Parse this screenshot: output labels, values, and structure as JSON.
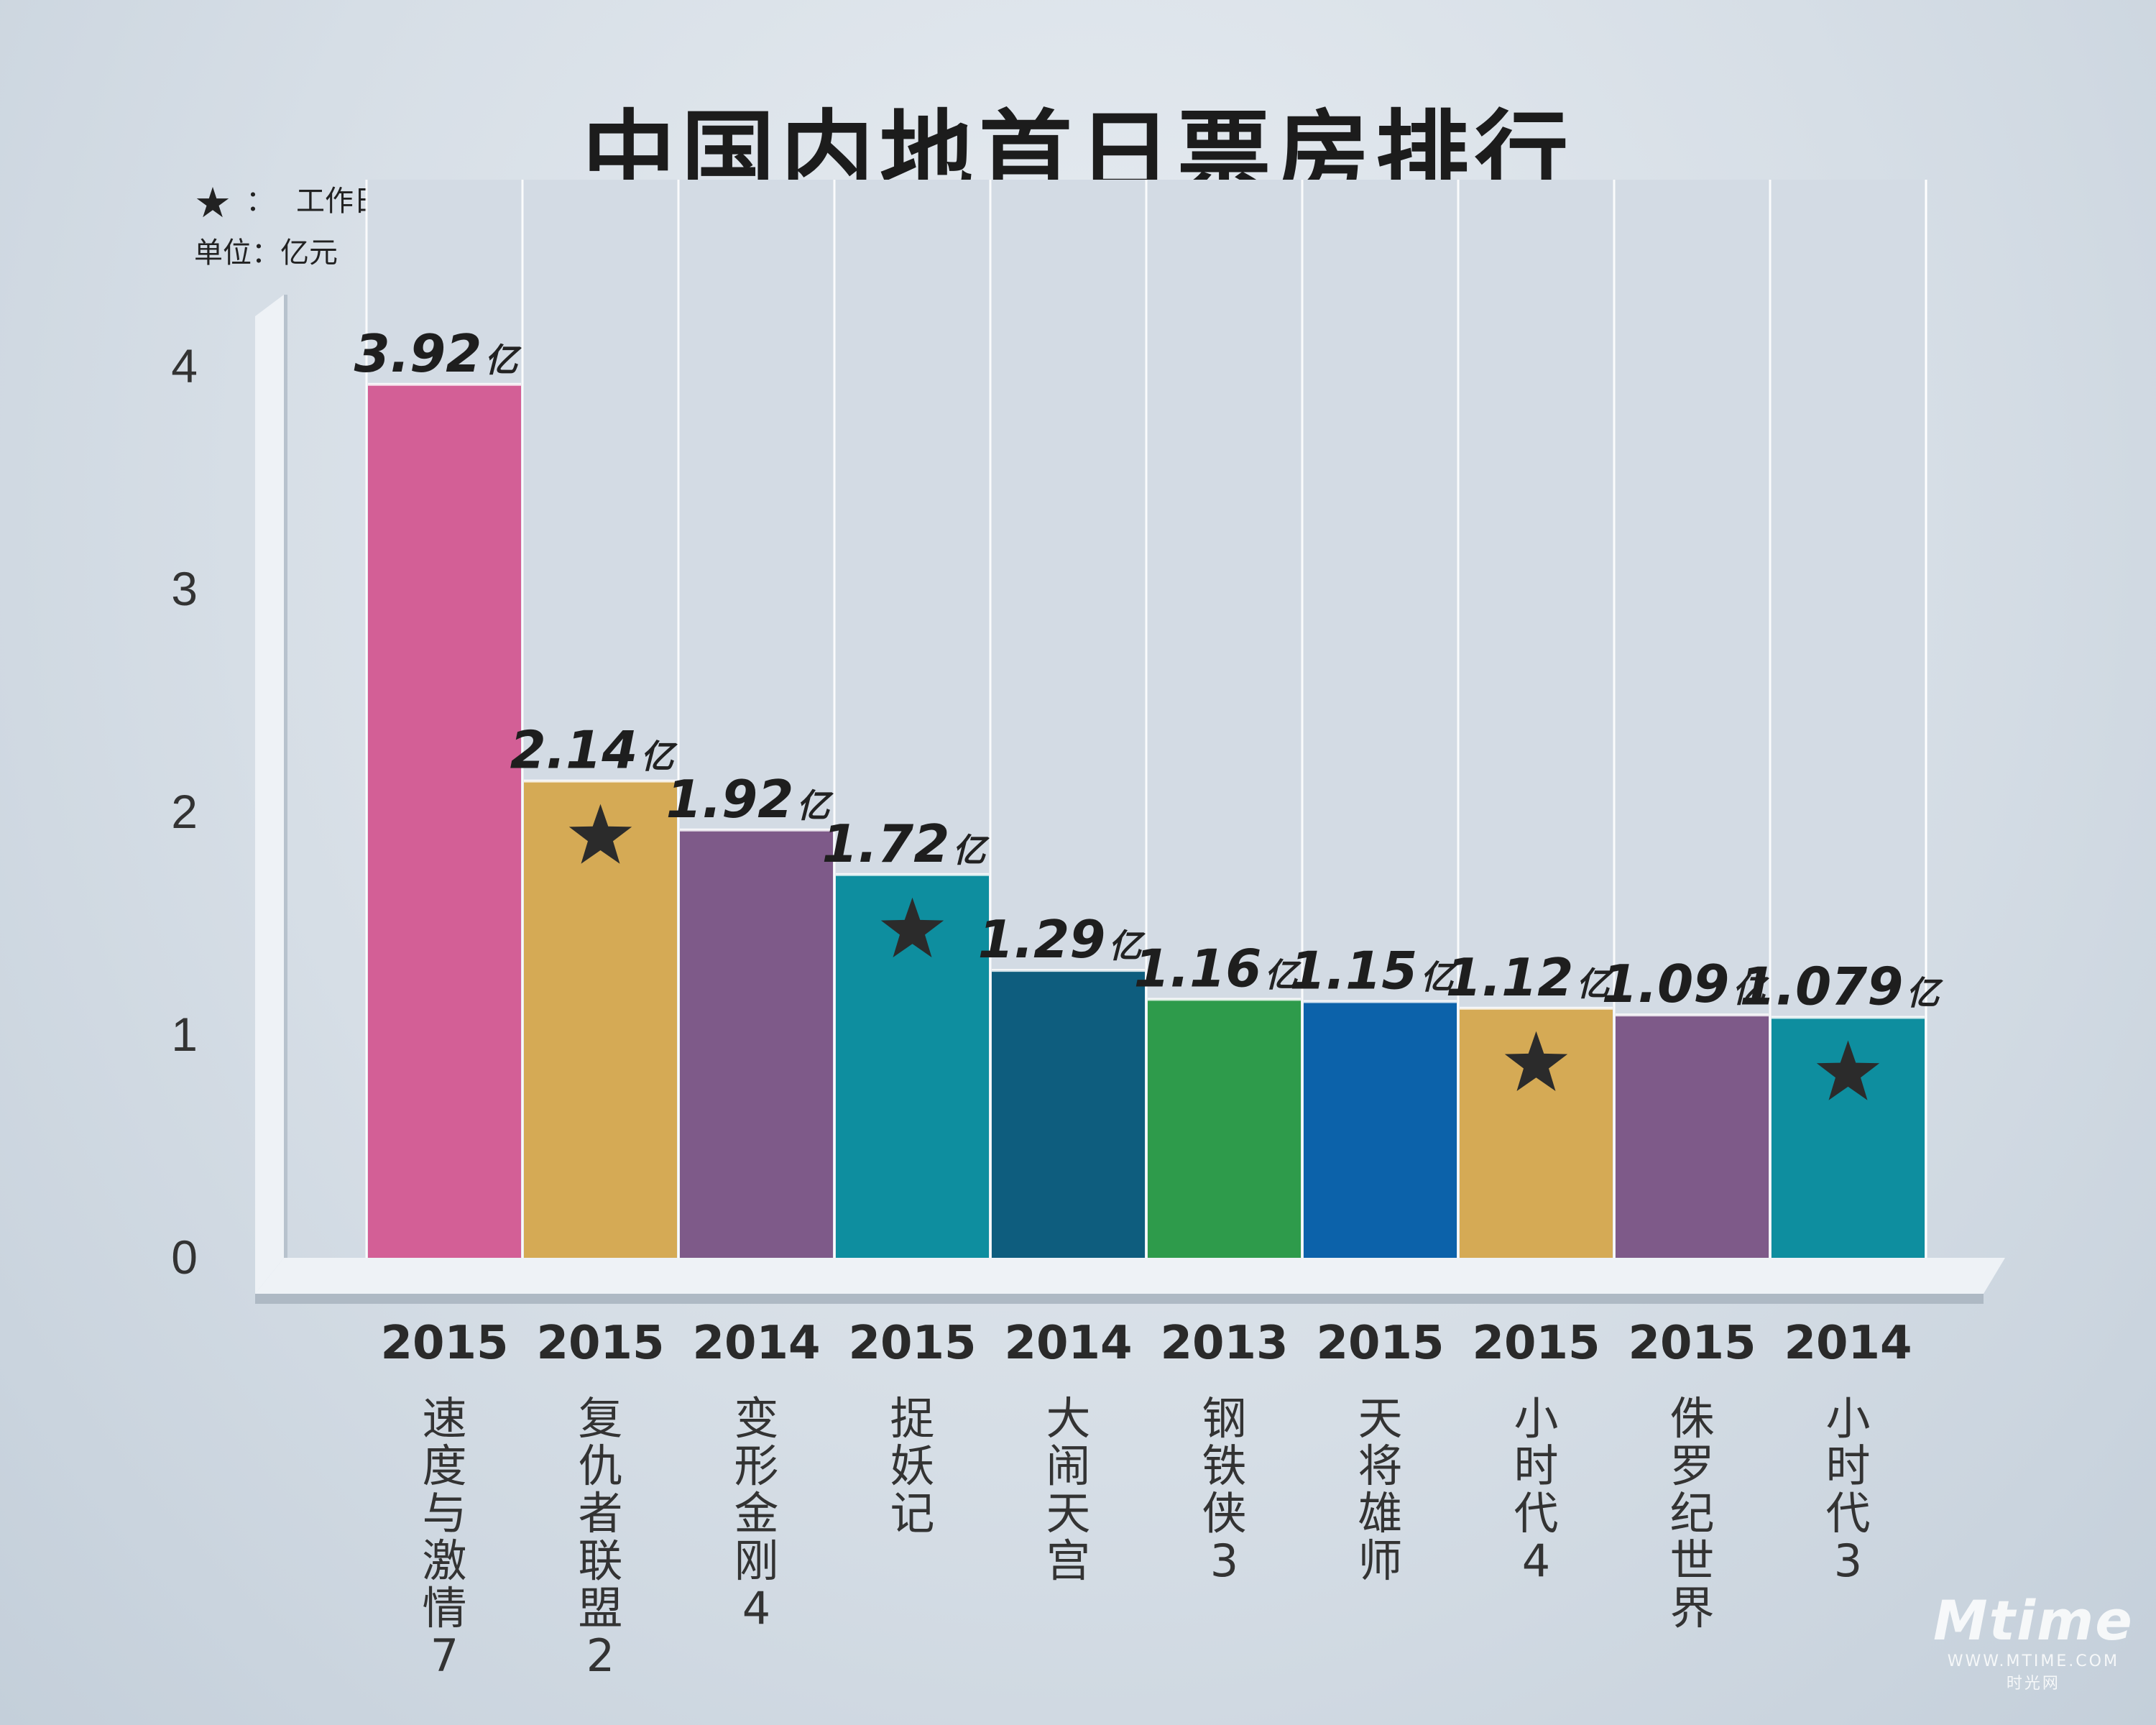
{
  "title": "中国内地首日票房排行",
  "legend": {
    "star_label": "工作日",
    "unit_label": "单位：亿元"
  },
  "watermark": {
    "brand": "Mtime",
    "tag": "时光网",
    "site": "WWW.MTIME.COM"
  },
  "chart_data": {
    "type": "bar",
    "title": "中国内地首日票房排行",
    "ylabel": "单位：亿元",
    "ylim": [
      0,
      4
    ],
    "yticks": [
      0,
      1,
      2,
      3,
      4
    ],
    "grid": true,
    "legend": "top-left",
    "unit_suffix": "亿",
    "bars": [
      {
        "name": "速度与激情7",
        "year": "2015",
        "value": 3.92,
        "label": "3.92",
        "workday": false,
        "color": "#d35f96"
      },
      {
        "name": "复仇者联盟2",
        "year": "2015",
        "value": 2.14,
        "label": "2.14",
        "workday": true,
        "color": "#d5aa55"
      },
      {
        "name": "变形金刚4",
        "year": "2014",
        "value": 1.92,
        "label": "1.92",
        "workday": false,
        "color": "#7e5a89"
      },
      {
        "name": "捉妖记",
        "year": "2015",
        "value": 1.72,
        "label": "1.72",
        "workday": true,
        "color": "#0e8e9f"
      },
      {
        "name": "大闹天宫",
        "year": "2014",
        "value": 1.29,
        "label": "1.29",
        "workday": false,
        "color": "#0e5d7e"
      },
      {
        "name": "钢铁侠3",
        "year": "2013",
        "value": 1.16,
        "label": "1.16",
        "workday": false,
        "color": "#2e9b4b"
      },
      {
        "name": "天将雄师",
        "year": "2015",
        "value": 1.15,
        "label": "1.15",
        "workday": false,
        "color": "#0c62aa"
      },
      {
        "name": "小时代4",
        "year": "2015",
        "value": 1.12,
        "label": "1.12",
        "workday": true,
        "color": "#d5aa55"
      },
      {
        "name": "侏罗纪世界",
        "year": "2015",
        "value": 1.09,
        "label": "1.09",
        "workday": false,
        "color": "#7e5a89"
      },
      {
        "name": "小时代3",
        "year": "2014",
        "value": 1.079,
        "label": "1.079",
        "workday": true,
        "color": "#0e8e9f"
      }
    ]
  }
}
